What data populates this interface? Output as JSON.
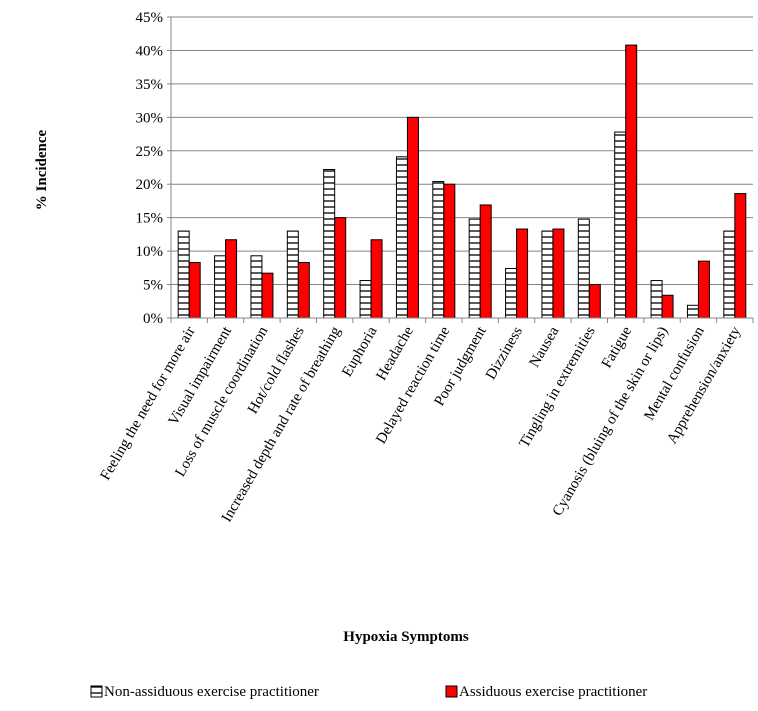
{
  "chart_data": {
    "type": "bar",
    "title": "",
    "xlabel": "Hypoxia Symptoms",
    "ylabel": "% Incidence",
    "ylim": [
      0,
      45
    ],
    "yticks": [
      "0%",
      "5%",
      "10%",
      "15%",
      "20%",
      "25%",
      "30%",
      "35%",
      "40%",
      "45%"
    ],
    "grid": true,
    "legend_position": "bottom",
    "categories": [
      "Feeling the need for more air",
      "Visual impairment",
      "Loss of muscle coordination",
      "Hot/cold flashes",
      "Increased depth and rate of breathing",
      "Euphoria",
      "Headache",
      "Delayed reaction time",
      "Poor judgment",
      "Dizziness",
      "Nausea",
      "Tingling in extremities",
      "Fatigue",
      "Cyanosis (bluing of the skin or lips)",
      "Mental confusion",
      "Apprehension/anxiety"
    ],
    "series": [
      {
        "name": "Non-assiduous exercise practitioner",
        "color": "#ffffff",
        "pattern": "horizontal-stripes",
        "values": [
          13.0,
          9.3,
          9.3,
          13.0,
          22.2,
          5.6,
          24.1,
          20.4,
          14.8,
          7.4,
          13.0,
          14.8,
          27.8,
          5.6,
          1.9,
          13.0
        ]
      },
      {
        "name": "Assiduous exercise practitioner",
        "color": "#ff0000",
        "pattern": "solid",
        "values": [
          8.3,
          11.7,
          6.7,
          8.3,
          15.0,
          11.7,
          30.0,
          20.0,
          16.9,
          13.3,
          13.3,
          5.0,
          40.8,
          3.4,
          8.5,
          18.6
        ]
      }
    ]
  }
}
